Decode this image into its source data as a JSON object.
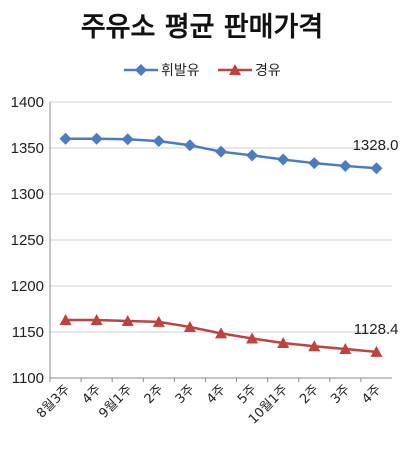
{
  "chart_data": {
    "type": "line",
    "title": "주유소 평균 판매가격",
    "categories": [
      "8월3주",
      "4주",
      "9월1주",
      "2주",
      "3주",
      "4주",
      "5주",
      "10월1주",
      "2주",
      "3주",
      "4주"
    ],
    "series": [
      {
        "name": "휘발유",
        "color": "#4a7dc0",
        "marker": "diamond",
        "values": [
          1360.0,
          1360.0,
          1359.5,
          1357.5,
          1353.0,
          1346.0,
          1342.0,
          1337.5,
          1333.5,
          1330.5,
          1328.0
        ],
        "end_label": "1328.0"
      },
      {
        "name": "경유",
        "color": "#c0413d",
        "marker": "triangle",
        "values": [
          1163.0,
          1163.0,
          1162.0,
          1161.0,
          1155.5,
          1148.5,
          1143.0,
          1138.0,
          1134.5,
          1131.5,
          1128.4
        ],
        "end_label": "1128.4"
      }
    ],
    "yticks": [
      "1400",
      "1350",
      "1300",
      "1250",
      "1200",
      "1150",
      "1100"
    ],
    "ylim": [
      1100,
      1400
    ],
    "grid": true,
    "legend_position": "top"
  }
}
